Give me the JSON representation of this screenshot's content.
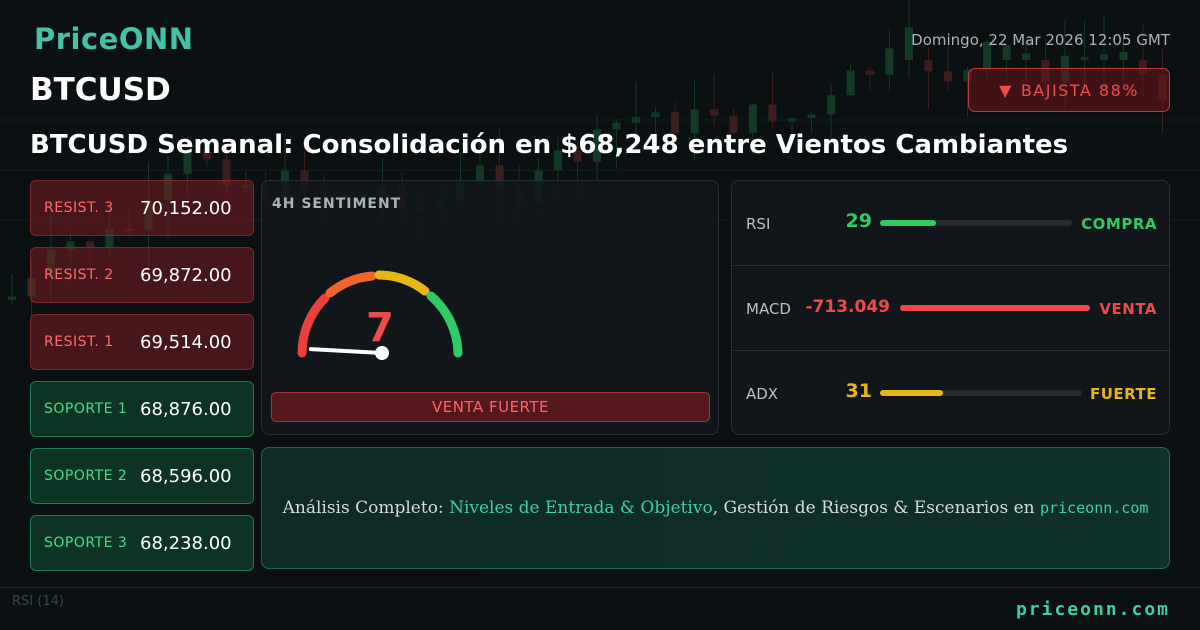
{
  "header": {
    "brand": "PriceONN",
    "date": "Domingo, 22 Mar 2026 12:05 GMT",
    "symbol": "BTCUSD",
    "trend_badge": "BAJISTA 88%",
    "headline": "BTCUSD Semanal: Consolidación en $68,248 entre Vientos Cambiantes"
  },
  "levels": [
    {
      "label": "RESIST. 3",
      "value": "70,152.00",
      "kind": "resistance"
    },
    {
      "label": "RESIST. 2",
      "value": "69,872.00",
      "kind": "resistance"
    },
    {
      "label": "RESIST. 1",
      "value": "69,514.00",
      "kind": "resistance"
    },
    {
      "label": "SOPORTE 1",
      "value": "68,876.00",
      "kind": "support"
    },
    {
      "label": "SOPORTE 2",
      "value": "68,596.00",
      "kind": "support"
    },
    {
      "label": "SOPORTE 3",
      "value": "68,238.00",
      "kind": "support"
    }
  ],
  "sentiment": {
    "title": "4H SENTIMENT",
    "score": "7",
    "score_fraction": 0.07,
    "verdict": "VENTA FUERTE"
  },
  "indicators": [
    {
      "name": "RSI",
      "value": "29",
      "signal": "COMPRA",
      "fill_fraction": 0.29,
      "color": "#2ecc64"
    },
    {
      "name": "MACD",
      "value": "-713.049",
      "signal": "VENTA",
      "fill_fraction": 1.0,
      "color": "#ef4a4a"
    },
    {
      "name": "ADX",
      "value": "31",
      "signal": "FUERTE",
      "fill_fraction": 0.31,
      "color": "#e8b619"
    }
  ],
  "cta": {
    "prefix": "Análisis Completo: ",
    "highlight": "Niveles de Entrada & Objetivo",
    "middle": ", Gestión de Riesgos & Escenarios en ",
    "domain": "priceonn.com"
  },
  "footer": {
    "url": "priceonn.com",
    "rsi_tag": "RSI (14)"
  },
  "colors": {
    "brand": "#43c2a6",
    "bearish": "#ef4a4a",
    "bullish": "#2ecc64"
  }
}
